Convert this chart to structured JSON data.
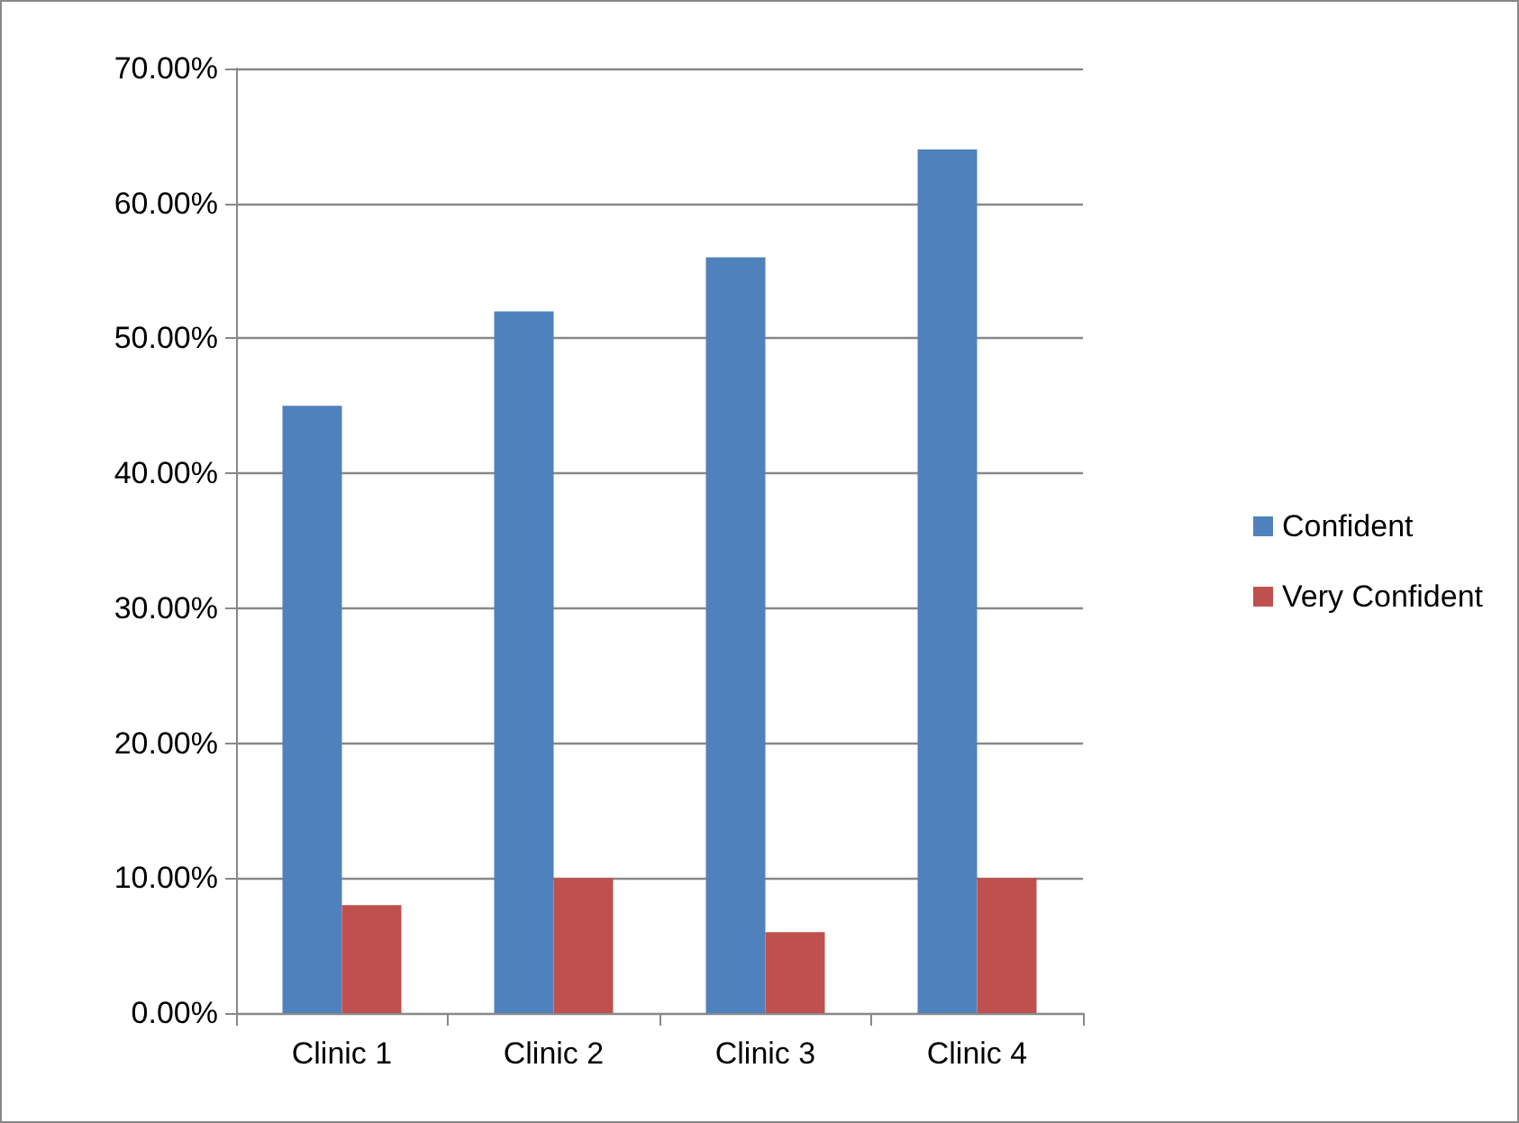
{
  "chart_data": {
    "type": "bar",
    "categories": [
      "Clinic 1",
      "Clinic 2",
      "Clinic 3",
      "Clinic 4"
    ],
    "series": [
      {
        "name": "Confident",
        "color": "#4f81bd",
        "values": [
          45,
          52,
          56,
          64
        ]
      },
      {
        "name": "Very Confident",
        "color": "#c0504d",
        "values": [
          8,
          10,
          6,
          10
        ]
      }
    ],
    "ylim": [
      0,
      70
    ],
    "yticks": [
      {
        "value": 0,
        "label": "0.00%"
      },
      {
        "value": 10,
        "label": "10.00%"
      },
      {
        "value": 20,
        "label": "20.00%"
      },
      {
        "value": 30,
        "label": "30.00%"
      },
      {
        "value": 40,
        "label": "40.00%"
      },
      {
        "value": 50,
        "label": "50.00%"
      },
      {
        "value": 60,
        "label": "60.00%"
      },
      {
        "value": 70,
        "label": "70.00%"
      }
    ],
    "grid": "y",
    "legend": "right"
  }
}
